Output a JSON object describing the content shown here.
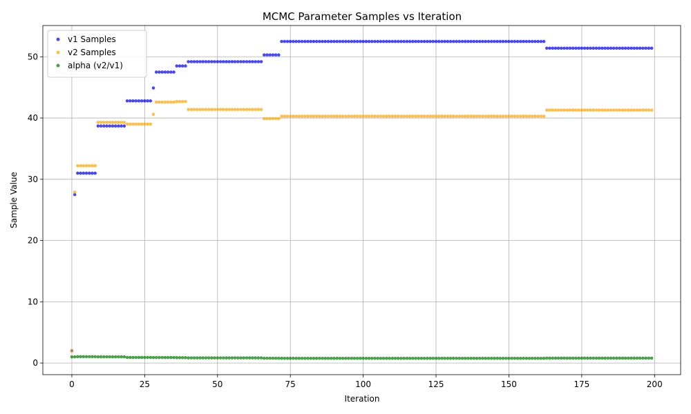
{
  "chart_data": {
    "type": "scatter",
    "title": "MCMC Parameter Samples vs Iteration",
    "xlabel": "Iteration",
    "ylabel": "Sample Value",
    "xlim": [
      -9.95,
      208.95
    ],
    "ylim": [
      -1.9,
      55.1
    ],
    "x_ticks": [
      0,
      25,
      50,
      75,
      100,
      125,
      150,
      175,
      200
    ],
    "y_ticks": [
      0,
      10,
      20,
      30,
      40,
      50
    ],
    "grid": true,
    "legend_position": "top-left",
    "series": [
      {
        "name": "v1 Samples",
        "color": "#0000ff",
        "segments": [
          {
            "from": 0,
            "to": 0,
            "value": 2.0
          },
          {
            "from": 1,
            "to": 1,
            "value": 27.5
          },
          {
            "from": 2,
            "to": 8,
            "value": 31.0
          },
          {
            "from": 9,
            "to": 18,
            "value": 38.7
          },
          {
            "from": 19,
            "to": 27,
            "value": 42.8
          },
          {
            "from": 28,
            "to": 28,
            "value": 44.9
          },
          {
            "from": 29,
            "to": 35,
            "value": 47.5
          },
          {
            "from": 36,
            "to": 39,
            "value": 48.5
          },
          {
            "from": 40,
            "to": 65,
            "value": 49.2
          },
          {
            "from": 66,
            "to": 71,
            "value": 50.3
          },
          {
            "from": 72,
            "to": 162,
            "value": 52.5
          },
          {
            "from": 163,
            "to": 199,
            "value": 51.4
          }
        ]
      },
      {
        "name": "v2 Samples",
        "color": "#ffa500",
        "segments": [
          {
            "from": 0,
            "to": 0,
            "value": 2.0
          },
          {
            "from": 1,
            "to": 1,
            "value": 27.9
          },
          {
            "from": 2,
            "to": 8,
            "value": 32.2
          },
          {
            "from": 9,
            "to": 18,
            "value": 39.3
          },
          {
            "from": 19,
            "to": 27,
            "value": 39.0
          },
          {
            "from": 28,
            "to": 28,
            "value": 40.6
          },
          {
            "from": 29,
            "to": 35,
            "value": 42.6
          },
          {
            "from": 36,
            "to": 39,
            "value": 42.7
          },
          {
            "from": 40,
            "to": 65,
            "value": 41.4
          },
          {
            "from": 66,
            "to": 71,
            "value": 39.9
          },
          {
            "from": 72,
            "to": 162,
            "value": 40.3
          },
          {
            "from": 163,
            "to": 199,
            "value": 41.3
          }
        ]
      },
      {
        "name": "alpha (v2/v1)",
        "color": "#008000",
        "segments": [
          {
            "from": 0,
            "to": 0,
            "value": 1.0
          },
          {
            "from": 1,
            "to": 1,
            "value": 1.01
          },
          {
            "from": 2,
            "to": 8,
            "value": 1.04
          },
          {
            "from": 9,
            "to": 18,
            "value": 1.02
          },
          {
            "from": 19,
            "to": 27,
            "value": 0.91
          },
          {
            "from": 28,
            "to": 28,
            "value": 0.9
          },
          {
            "from": 29,
            "to": 35,
            "value": 0.9
          },
          {
            "from": 36,
            "to": 39,
            "value": 0.88
          },
          {
            "from": 40,
            "to": 65,
            "value": 0.84
          },
          {
            "from": 66,
            "to": 71,
            "value": 0.79
          },
          {
            "from": 72,
            "to": 162,
            "value": 0.77
          },
          {
            "from": 163,
            "to": 199,
            "value": 0.8
          }
        ]
      }
    ]
  }
}
